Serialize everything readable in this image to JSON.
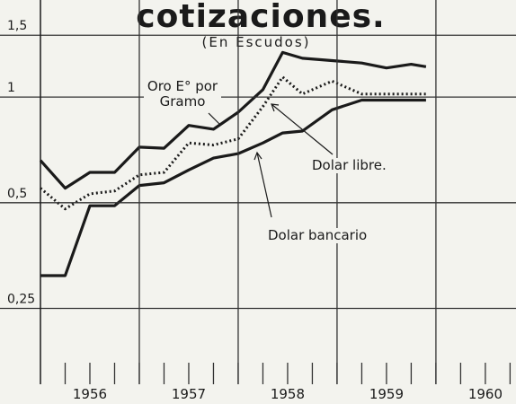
{
  "chart_data": {
    "type": "line",
    "title": "cotizaciones.",
    "subtitle": "(En Escudos)",
    "x": [
      1956.0,
      1956.25,
      1956.5,
      1956.75,
      1957.0,
      1957.25,
      1957.5,
      1957.75,
      1958.0,
      1958.25,
      1958.45,
      1958.65,
      1958.95,
      1959.25,
      1959.5,
      1959.75,
      1959.9
    ],
    "series": [
      {
        "name": "Oro E° por Gramo",
        "color": "#1a1a1a",
        "style": "solid",
        "values": [
          0.66,
          0.55,
          0.61,
          0.61,
          0.72,
          0.715,
          0.83,
          0.81,
          0.905,
          1.05,
          1.34,
          1.29,
          1.27,
          1.25,
          1.21,
          1.24,
          1.22
        ]
      },
      {
        "name": "Dolar libre.",
        "color": "#1a1a1a",
        "style": "dotted",
        "values": [
          0.55,
          0.48,
          0.53,
          0.54,
          0.6,
          0.61,
          0.74,
          0.73,
          0.76,
          0.94,
          1.14,
          1.02,
          1.11,
          1.02,
          1.02,
          1.02,
          1.02
        ]
      },
      {
        "name": "Dolar bancario",
        "color": "#1a1a1a",
        "style": "solid",
        "values": [
          0.31,
          0.31,
          0.49,
          0.49,
          0.56,
          0.57,
          0.62,
          0.67,
          0.69,
          0.74,
          0.79,
          0.8,
          0.92,
          0.98,
          0.98,
          0.98,
          0.98
        ]
      }
    ],
    "xlim": [
      1956,
      1960.81
    ],
    "xticks": [
      {
        "value": 1956.5,
        "label": "1956"
      },
      {
        "value": 1957.5,
        "label": "1957"
      },
      {
        "value": 1958.5,
        "label": "1958"
      },
      {
        "value": 1959.5,
        "label": "1959"
      },
      {
        "value": 1960.5,
        "label": "1960"
      }
    ],
    "xgrid": [
      1957,
      1958,
      1959,
      1960
    ],
    "ylim": [
      0.152,
      1.89
    ],
    "yticks": [
      {
        "value": 1.5,
        "label": "1,5"
      },
      1,
      {
        "value": 0.5,
        "label": "0,5"
      },
      {
        "value": 0.25,
        "label": "0,25"
      }
    ],
    "log_y": true,
    "grid": true
  }
}
